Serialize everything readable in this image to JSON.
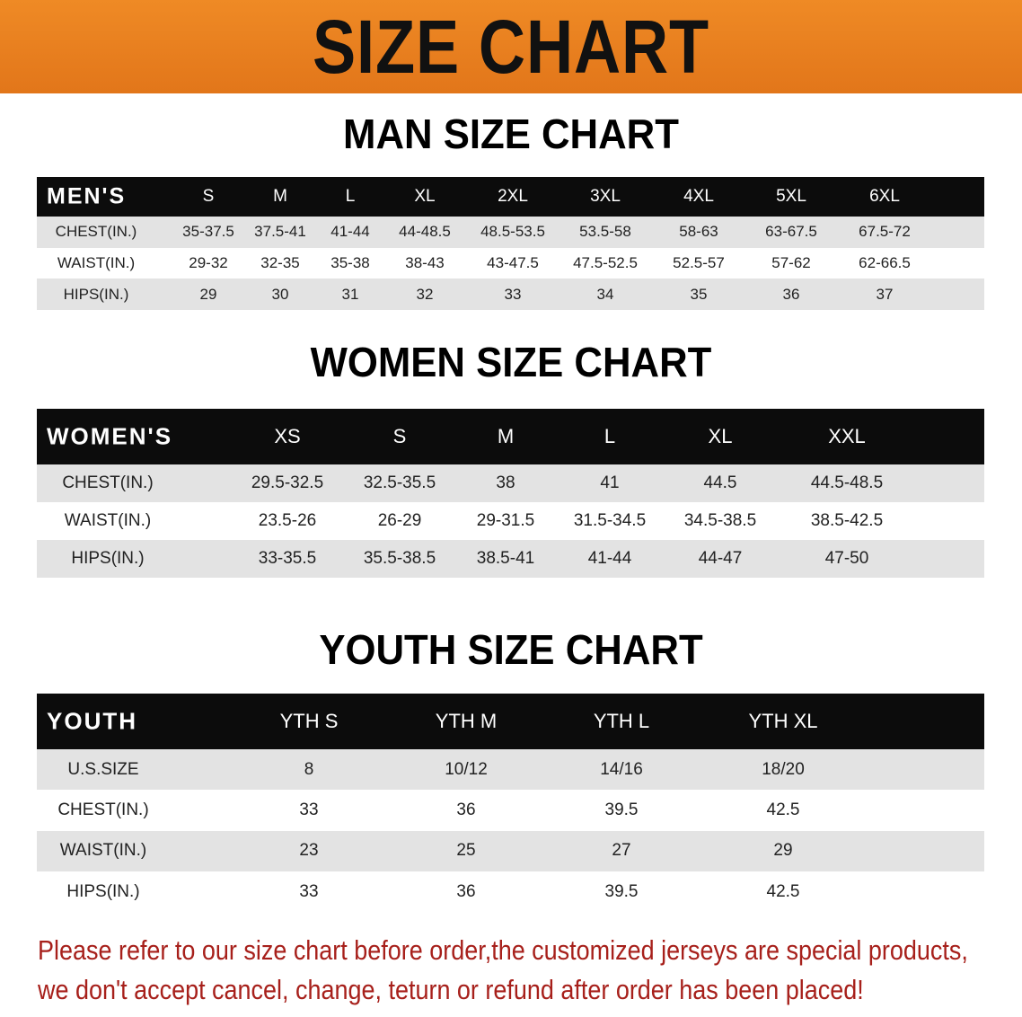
{
  "banner": {
    "title": "SIZE CHART",
    "color": "#e8801e"
  },
  "men": {
    "title": "MAN SIZE CHART",
    "header_label": "MEN'S",
    "sizes": [
      "S",
      "M",
      "L",
      "XL",
      "2XL",
      "3XL",
      "4XL",
      "5XL",
      "6XL"
    ],
    "rows": [
      {
        "label": "CHEST(IN.)",
        "values": [
          "35-37.5",
          "37.5-41",
          "41-44",
          "44-48.5",
          "48.5-53.5",
          "53.5-58",
          "58-63",
          "63-67.5",
          "67.5-72"
        ]
      },
      {
        "label": "WAIST(IN.)",
        "values": [
          "29-32",
          "32-35",
          "35-38",
          "38-43",
          "43-47.5",
          "47.5-52.5",
          "52.5-57",
          "57-62",
          "62-66.5"
        ]
      },
      {
        "label": "HIPS(IN.)",
        "values": [
          "29",
          "30",
          "31",
          "32",
          "33",
          "34",
          "35",
          "36",
          "37"
        ]
      }
    ]
  },
  "women": {
    "title": "WOMEN SIZE CHART",
    "header_label": "WOMEN'S",
    "sizes": [
      "XS",
      "S",
      "M",
      "L",
      "XL",
      "XXL"
    ],
    "rows": [
      {
        "label": "CHEST(IN.)",
        "values": [
          "29.5-32.5",
          "32.5-35.5",
          "38",
          "41",
          "44.5",
          "44.5-48.5"
        ]
      },
      {
        "label": "WAIST(IN.)",
        "values": [
          "23.5-26",
          "26-29",
          "29-31.5",
          "31.5-34.5",
          "34.5-38.5",
          "38.5-42.5"
        ]
      },
      {
        "label": "HIPS(IN.)",
        "values": [
          "33-35.5",
          "35.5-38.5",
          "38.5-41",
          "41-44",
          "44-47",
          "47-50"
        ]
      }
    ]
  },
  "youth": {
    "title": "YOUTH SIZE CHART",
    "header_label": "YOUTH",
    "sizes": [
      "YTH S",
      "YTH M",
      "YTH L",
      "YTH XL"
    ],
    "rows": [
      {
        "label": "U.S.SIZE",
        "values": [
          "8",
          "10/12",
          "14/16",
          "18/20"
        ]
      },
      {
        "label": "CHEST(IN.)",
        "values": [
          "33",
          "36",
          "39.5",
          "42.5"
        ]
      },
      {
        "label": "WAIST(IN.)",
        "values": [
          "23",
          "25",
          "27",
          "29"
        ]
      },
      {
        "label": "HIPS(IN.)",
        "values": [
          "33",
          "36",
          "39.5",
          "42.5"
        ]
      }
    ]
  },
  "notice": {
    "line1": "Please refer to our size chart before order,the customized jerseys are special products,",
    "line2": "we don't accept cancel, change, teturn or refund after order has been placed!",
    "color": "#a7201b"
  }
}
